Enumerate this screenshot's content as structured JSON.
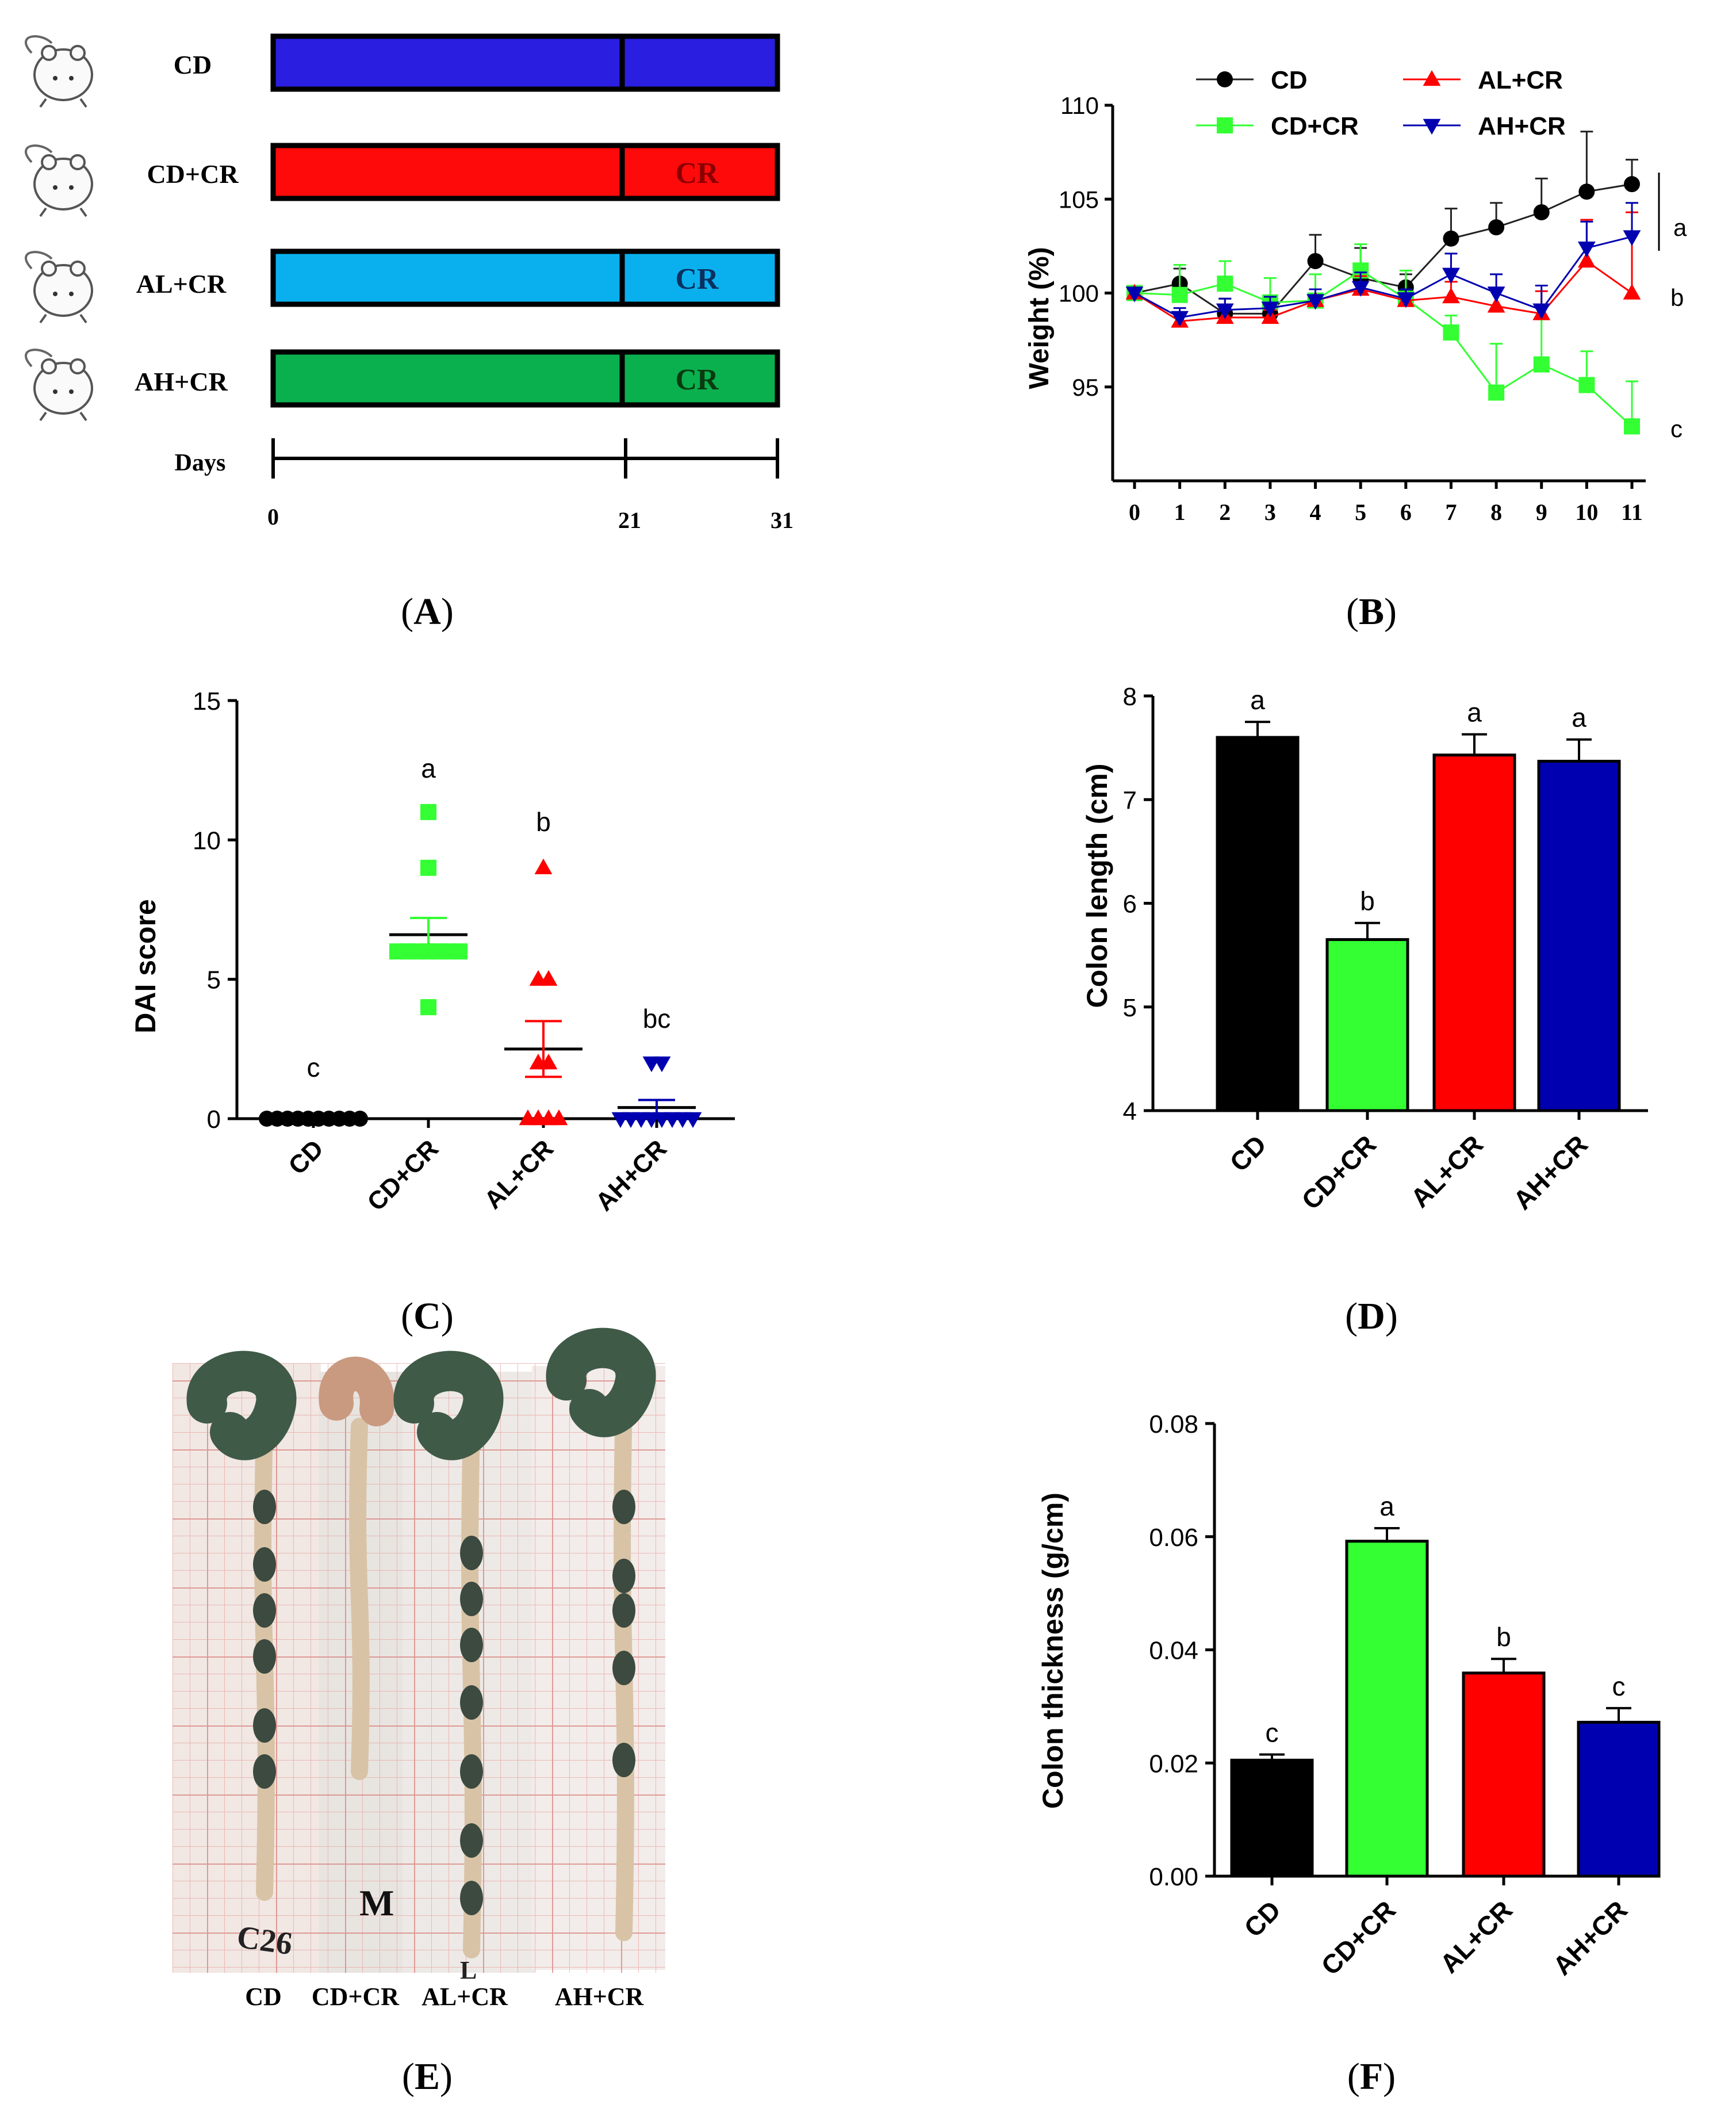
{
  "colors": {
    "cd": "#000000",
    "cd_cr": "#33ff33",
    "al_cr": "#ff0000",
    "ah_cr": "#0000b0",
    "a_cd": "#2a1ee0",
    "a_cdcr": "#ff0a0a",
    "a_alcr": "#0ab0ee",
    "a_ahcr": "#0ab04e"
  },
  "panel_a": {
    "caption_letter": "A",
    "groups": [
      {
        "name": "CD",
        "second_label": ""
      },
      {
        "name": "CD+CR",
        "second_label": "CR"
      },
      {
        "name": "AL+CR",
        "second_label": "CR"
      },
      {
        "name": "AH+CR",
        "second_label": "CR"
      }
    ],
    "timeline_label": "Days",
    "ticks": [
      "0",
      "21",
      "31"
    ],
    "tick_values": [
      0,
      21,
      31
    ]
  },
  "panel_e": {
    "caption_letter": "E",
    "labels": [
      "CD",
      "CD+CR",
      "AL+CR",
      "AH+CR"
    ],
    "handwriting": [
      "C26",
      "M",
      "L"
    ]
  },
  "chart_data": [
    {
      "panel": "B",
      "type": "line",
      "ylabel": "Weight (%)",
      "x": [
        0,
        1,
        2,
        3,
        4,
        5,
        6,
        7,
        8,
        9,
        10,
        11
      ],
      "ylim": [
        90,
        110
      ],
      "yticks": [
        95,
        100,
        105,
        110
      ],
      "series": [
        {
          "name": "CD",
          "marker": "circle",
          "values": [
            100,
            100.5,
            98.9,
            98.9,
            101.7,
            100.8,
            100.3,
            102.9,
            103.5,
            104.3,
            105.4,
            105.8
          ],
          "errors": [
            0,
            0.8,
            0.8,
            0.8,
            1.4,
            1.6,
            0.7,
            1.6,
            1.3,
            1.8,
            3.2,
            1.3
          ]
        },
        {
          "name": "CD+CR",
          "marker": "square",
          "values": [
            100,
            99.9,
            100.5,
            99.5,
            99.6,
            101.2,
            99.7,
            97.9,
            94.7,
            96.2,
            95.1,
            92.9
          ],
          "errors": [
            0,
            1.6,
            1.2,
            1.3,
            1.4,
            1.4,
            1.5,
            0.9,
            2.6,
            2.4,
            1.8,
            2.4
          ]
        },
        {
          "name": "AL+CR",
          "marker": "triangle-up",
          "values": [
            100,
            98.5,
            98.7,
            98.7,
            99.6,
            100.2,
            99.6,
            99.8,
            99.3,
            98.9,
            101.7,
            100.0
          ],
          "errors": [
            0,
            0.4,
            0.4,
            0.4,
            0.6,
            0.7,
            0.6,
            0.8,
            0.9,
            1.2,
            2.2,
            4.3
          ]
        },
        {
          "name": "AH+CR",
          "marker": "triangle-down",
          "values": [
            100,
            98.7,
            99.1,
            99.2,
            99.6,
            100.3,
            99.7,
            101.0,
            100.0,
            99.1,
            102.4,
            103.0
          ],
          "errors": [
            0,
            0.5,
            0.6,
            0.6,
            0.6,
            0.8,
            0.5,
            1.1,
            1.0,
            1.3,
            1.4,
            1.8
          ]
        }
      ],
      "annotations": [
        "a",
        "b",
        "c"
      ],
      "caption_letter": "B"
    },
    {
      "panel": "C",
      "type": "scatter",
      "ylabel": "DAI score",
      "categories": [
        "CD",
        "CD+CR",
        "AL+CR",
        "AH+CR"
      ],
      "ylim": [
        0,
        15
      ],
      "yticks": [
        0,
        5,
        10,
        15
      ],
      "points": [
        [
          0,
          0,
          0,
          0,
          0,
          0,
          0,
          0,
          0,
          0
        ],
        [
          11,
          9,
          6,
          6,
          6,
          6,
          6,
          6,
          6,
          4
        ],
        [
          9,
          5,
          5,
          2,
          2,
          0,
          0,
          0,
          0
        ],
        [
          2,
          2,
          0,
          0,
          0,
          0,
          0,
          0,
          0,
          0
        ]
      ],
      "means": [
        0,
        6.6,
        2.5,
        0.4
      ],
      "sem": [
        0,
        0.6,
        1.0,
        0.27
      ],
      "letters": [
        "c",
        "a",
        "b",
        "bc"
      ],
      "caption_letter": "C"
    },
    {
      "panel": "D",
      "type": "bar",
      "ylabel": "Colon length (cm)",
      "categories": [
        "CD",
        "CD+CR",
        "AL+CR",
        "AH+CR"
      ],
      "values": [
        7.6,
        5.65,
        7.43,
        7.37
      ],
      "errors": [
        0.15,
        0.16,
        0.2,
        0.21
      ],
      "ylim": [
        4,
        8
      ],
      "yticks": [
        4,
        5,
        6,
        7,
        8
      ],
      "letters": [
        "a",
        "b",
        "a",
        "a"
      ],
      "caption_letter": "D"
    },
    {
      "panel": "F",
      "type": "bar",
      "ylabel": "Colon thickness (g/cm)",
      "categories": [
        "CD",
        "CD+CR",
        "AL+CR",
        "AH+CR"
      ],
      "values": [
        0.0205,
        0.0592,
        0.0359,
        0.0272
      ],
      "errors": [
        0.001,
        0.0023,
        0.0025,
        0.0025
      ],
      "ylim": [
        0,
        0.08
      ],
      "yticks": [
        "0.00",
        "0.02",
        "0.04",
        "0.06",
        "0.08"
      ],
      "letters": [
        "c",
        "a",
        "b",
        "c"
      ],
      "caption_letter": "F"
    }
  ]
}
